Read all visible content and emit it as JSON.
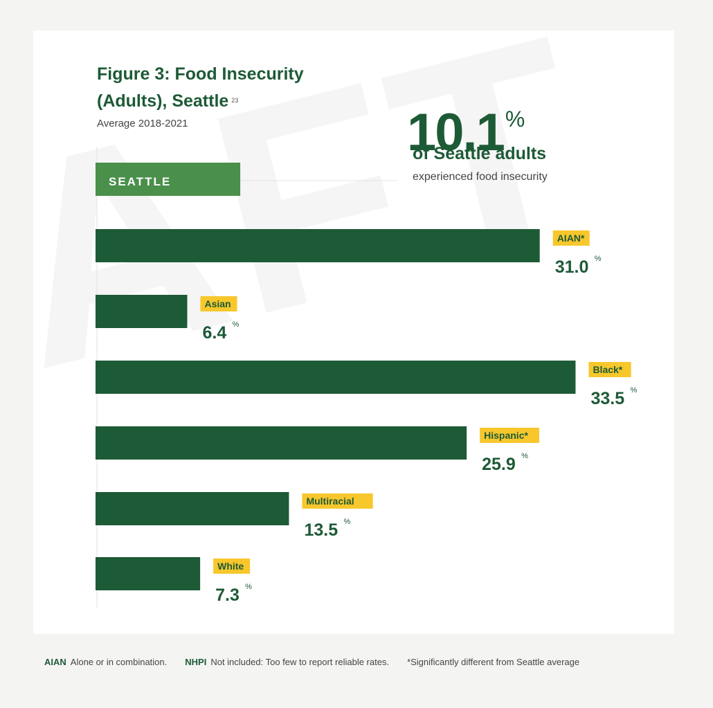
{
  "figure": {
    "title": "Figure 3: Food Insecurity (Adults), Seattle",
    "footnote_ref": "23",
    "subtitle": "Average 2018-2021"
  },
  "highlight": {
    "value": "10.1",
    "unit": "%",
    "line1": "of Seattle adults",
    "line2": "experienced food insecurity"
  },
  "chart_data": {
    "type": "bar",
    "orientation": "horizontal",
    "title": "Figure 3: Food Insecurity (Adults), Seattle",
    "subtitle": "Average 2018-2021",
    "xlabel": "",
    "ylabel": "",
    "unit": "%",
    "reference": {
      "label": "SEATTLE",
      "value": 10.1
    },
    "categories": [
      "AIAN*",
      "Asian",
      "Black*",
      "Hispanic*",
      "Multiracial",
      "White"
    ],
    "values": [
      31.0,
      6.4,
      33.5,
      25.9,
      13.5,
      7.3
    ],
    "value_labels": [
      "31.0",
      "6.4",
      "33.5",
      "25.9",
      "13.5",
      "7.3"
    ],
    "xlim": [
      0,
      33.5
    ],
    "grid": false,
    "colors": {
      "bar": "#1d5a36",
      "reference_bar": "#4a8f4a",
      "label_bg": "#f7c72c",
      "text": "#1d5a36"
    }
  },
  "footer": {
    "aian_term": "AIAN",
    "aian_def": "Alone or in combination.",
    "nhpi_term": "NHPI",
    "nhpi_def": "Not included: Too few to report reliable rates.",
    "note": "*Significantly different from Seattle average"
  }
}
